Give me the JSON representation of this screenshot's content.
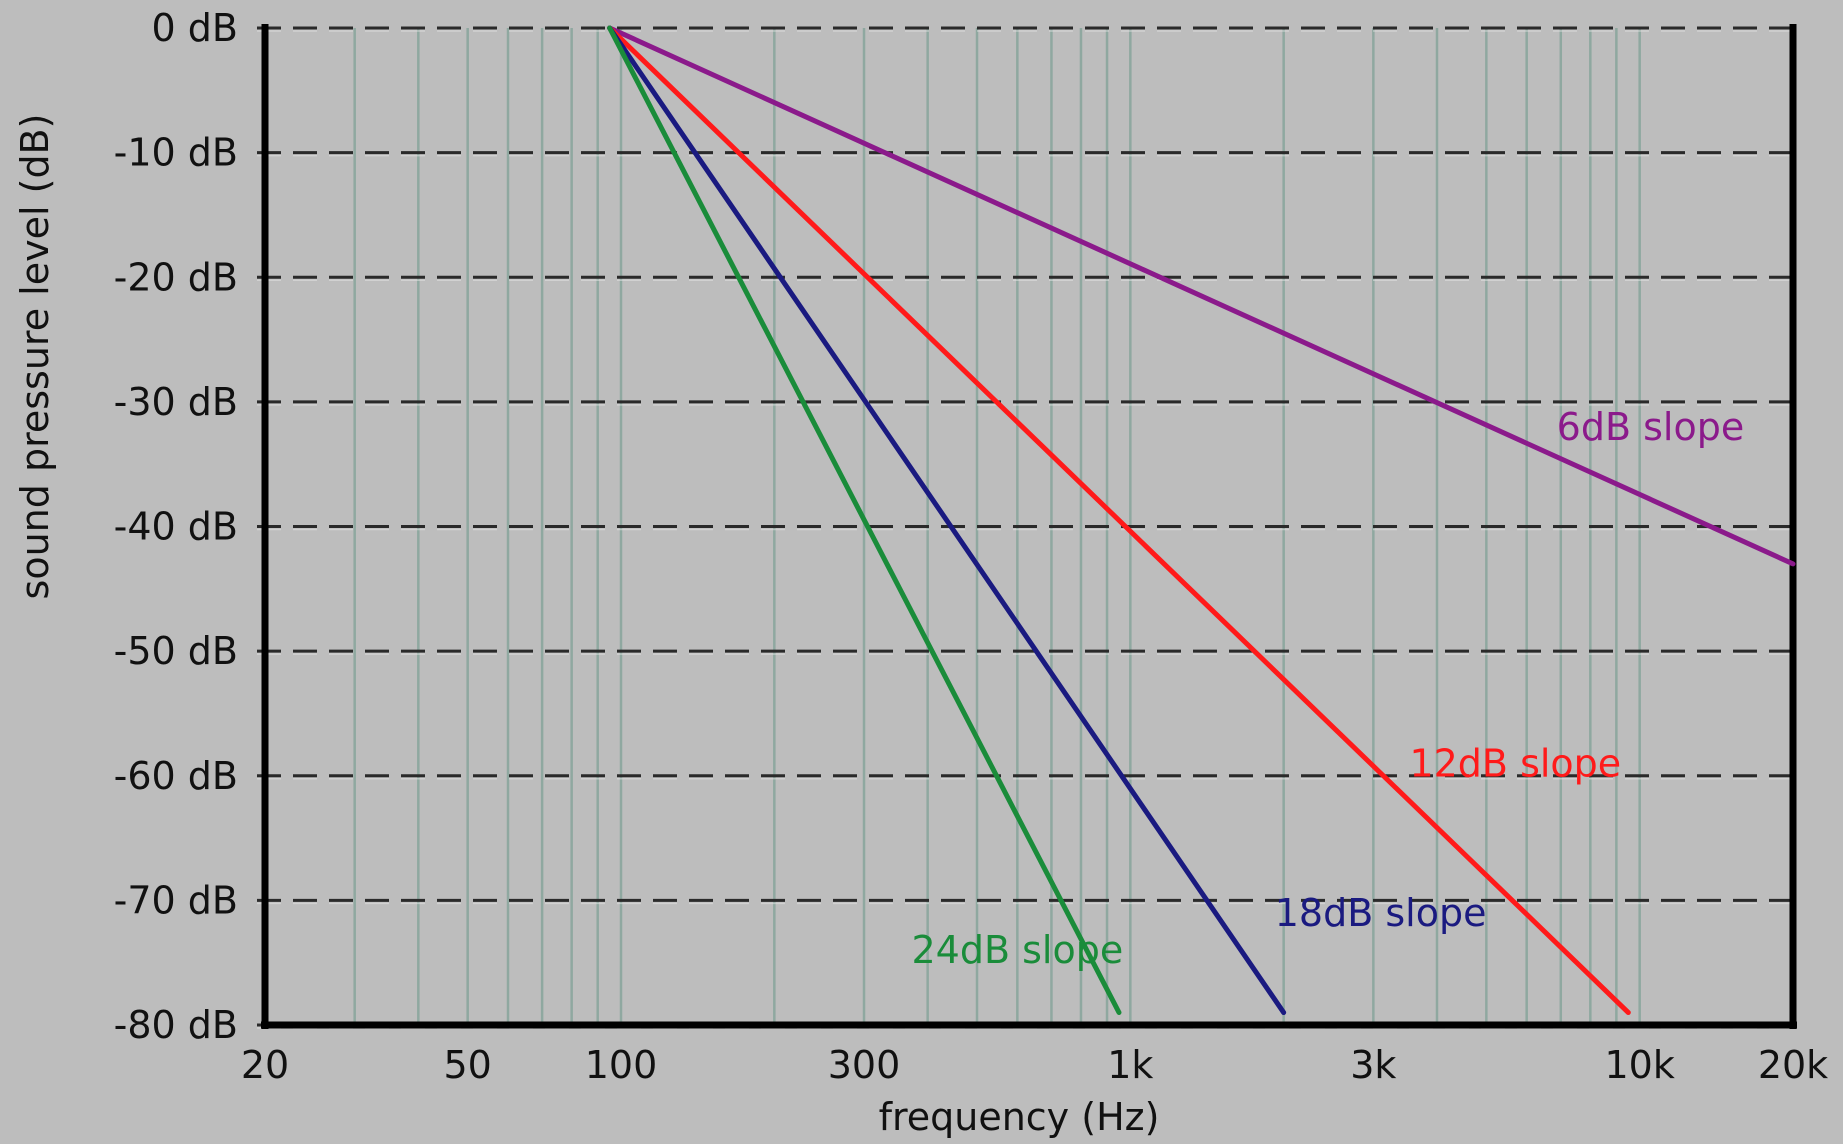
{
  "chart_data": {
    "type": "line",
    "title": "",
    "xlabel": "frequency (Hz)",
    "ylabel": "sound pressure level (dB)",
    "x_scale": "log",
    "xlim": [
      20,
      20000
    ],
    "ylim": [
      -80,
      0
    ],
    "grid": true,
    "legend": "none",
    "background_color": "#bdbdbd",
    "x_ticks": [
      {
        "value": 20,
        "label": "20"
      },
      {
        "value": 50,
        "label": "50"
      },
      {
        "value": 100,
        "label": "100"
      },
      {
        "value": 300,
        "label": "300"
      },
      {
        "value": 1000,
        "label": "1k"
      },
      {
        "value": 3000,
        "label": "3k"
      },
      {
        "value": 10000,
        "label": "10k"
      },
      {
        "value": 20000,
        "label": "20k"
      }
    ],
    "y_ticks": [
      {
        "value": 0,
        "label": "0 dB"
      },
      {
        "value": -10,
        "label": "-10 dB"
      },
      {
        "value": -20,
        "label": "-20 dB"
      },
      {
        "value": -30,
        "label": "-30 dB"
      },
      {
        "value": -40,
        "label": "-40 dB"
      },
      {
        "value": -50,
        "label": "-50 dB"
      },
      {
        "value": -60,
        "label": "-60 dB"
      },
      {
        "value": -70,
        "label": "-70 dB"
      },
      {
        "value": -80,
        "label": "-80 dB"
      }
    ],
    "x_gridlines": [
      30,
      40,
      50,
      60,
      70,
      80,
      90,
      100,
      200,
      300,
      400,
      500,
      600,
      700,
      800,
      900,
      1000,
      2000,
      3000,
      4000,
      5000,
      6000,
      7000,
      8000,
      9000,
      10000
    ],
    "series": [
      {
        "name": "6dB slope",
        "color": "#8b1a8b",
        "points": [
          [
            95,
            0
          ],
          [
            20000,
            -43
          ]
        ],
        "label_at": [
          10500,
          -32
        ]
      },
      {
        "name": "12dB slope",
        "color": "#ff1a1a",
        "points": [
          [
            95,
            0
          ],
          [
            9500,
            -79
          ]
        ],
        "label_at": [
          5700,
          -59
        ]
      },
      {
        "name": "18dB slope",
        "color": "#1a1a80",
        "points": [
          [
            95,
            0
          ],
          [
            2000,
            -79
          ]
        ],
        "label_at": [
          3100,
          -71
        ]
      },
      {
        "name": "24dB slope",
        "color": "#1a8c3a",
        "points": [
          [
            95,
            0
          ],
          [
            950,
            -79
          ]
        ],
        "label_at": [
          600,
          -74
        ]
      }
    ]
  }
}
